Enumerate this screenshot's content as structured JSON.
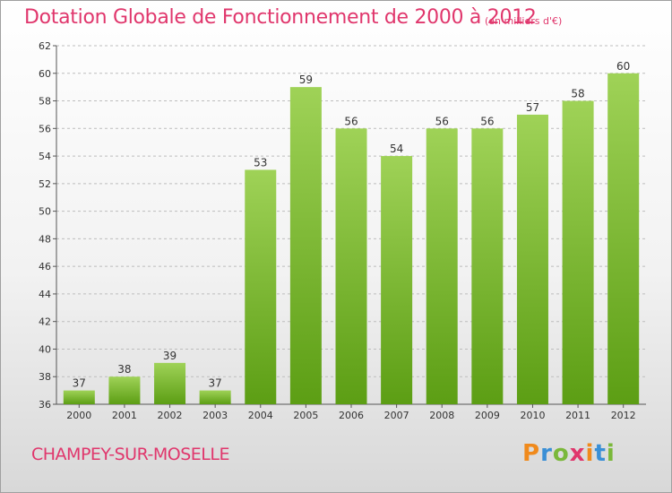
{
  "header": {
    "title": "Dotation Globale de Fonctionnement de 2000 à 2012",
    "unit": "(en milliers d'€)"
  },
  "footer": {
    "commune": "CHAMPEY-SUR-MOSELLE",
    "brand": "Proxiti",
    "brand_colors": [
      "#f08a1c",
      "#3a8fd6",
      "#7ab83a",
      "#e0366c",
      "#f08a1c",
      "#3a8fd6",
      "#7ab83a"
    ]
  },
  "colors": {
    "accent": "#e0366c",
    "bar_top": "#9fd257",
    "bar_bottom": "#5c9e14",
    "axis": "#555555",
    "grid": "#bdbdbd",
    "label": "#333333"
  },
  "chart_data": {
    "type": "bar",
    "title": "Dotation Globale de Fonctionnement de 2000 à 2012",
    "categories": [
      "2000",
      "2001",
      "2002",
      "2003",
      "2004",
      "2005",
      "2006",
      "2007",
      "2008",
      "2009",
      "2010",
      "2011",
      "2012"
    ],
    "values": [
      37,
      38,
      39,
      37,
      53,
      59,
      56,
      54,
      56,
      56,
      57,
      58,
      60
    ],
    "ylim": [
      36,
      62
    ],
    "yticks": [
      36,
      38,
      40,
      42,
      44,
      46,
      48,
      50,
      52,
      54,
      56,
      58,
      60,
      62
    ],
    "xlabel": "",
    "ylabel": "",
    "grid": "horizontal-dashed",
    "data_labels": true
  }
}
